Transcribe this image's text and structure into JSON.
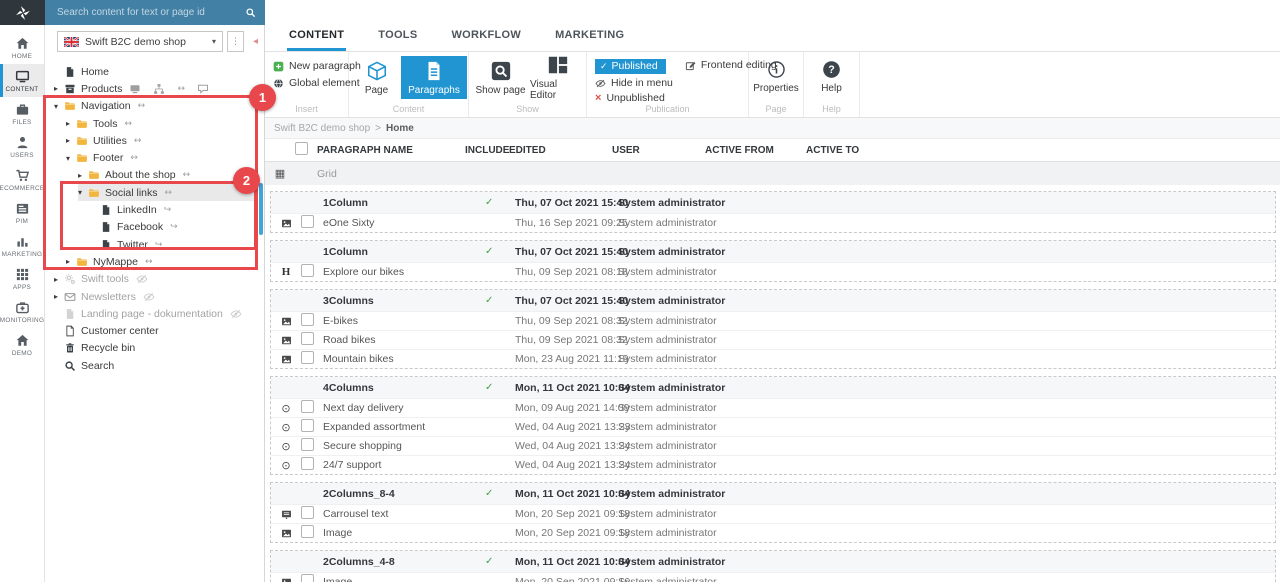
{
  "colors": {
    "accent": "#2195d1",
    "annotation_red": "#e8484c",
    "green": "#45a049",
    "folder": "#f2b53d",
    "searchbar_bg": "#4380a5"
  },
  "topbar": {
    "search_placeholder": "Search content for text or page id"
  },
  "sidebar": {
    "items": [
      {
        "label": "HOME",
        "icon": "home-icon",
        "active": false
      },
      {
        "label": "CONTENT",
        "icon": "monitor-icon",
        "active": true
      },
      {
        "label": "FILES",
        "icon": "briefcase-icon",
        "active": false
      },
      {
        "label": "USERS",
        "icon": "user-icon",
        "active": false
      },
      {
        "label": "ECOMMERCE",
        "icon": "cart-icon",
        "active": false
      },
      {
        "label": "PIM",
        "icon": "pim-icon",
        "active": false
      },
      {
        "label": "MARKETING",
        "icon": "barchart-icon",
        "active": false
      },
      {
        "label": "APPS",
        "icon": "apps-grid-icon",
        "active": false
      },
      {
        "label": "MONITORING",
        "icon": "medkit-icon",
        "active": false
      },
      {
        "label": "DEMO",
        "icon": "house-icon",
        "active": false
      }
    ]
  },
  "tree": {
    "selector": {
      "label": "Swift B2C demo shop",
      "flag": "uk-flag-icon",
      "caret": "▾",
      "kebab": "⋮",
      "collapse": "◂"
    },
    "items": [
      {
        "label": "Home",
        "icon": "page-dark-icon",
        "level": 0
      },
      {
        "label": "Products",
        "icon": "products-icon",
        "level": 0,
        "expander": "collapsed",
        "trailing": [
          "screen-icon",
          "sitemap-icon",
          "move-icon",
          "comment-icon"
        ]
      },
      {
        "label": "Navigation",
        "icon": "folder-icon",
        "level": 0,
        "expander": "expanded",
        "trailing": [
          "move-icon"
        ]
      },
      {
        "label": "Tools",
        "icon": "folder-icon",
        "level": 1,
        "expander": "collapsed",
        "trailing": [
          "move-icon"
        ]
      },
      {
        "label": "Utilities",
        "icon": "folder-icon",
        "level": 1,
        "expander": "collapsed",
        "trailing": [
          "move-icon"
        ]
      },
      {
        "label": "Footer",
        "icon": "folder-icon",
        "level": 1,
        "expander": "expanded",
        "trailing": [
          "move-icon"
        ]
      },
      {
        "label": "About the shop",
        "icon": "folder-icon",
        "level": 2,
        "expander": "collapsed",
        "trailing": [
          "move-icon"
        ]
      },
      {
        "label": "Social links",
        "icon": "folder-icon",
        "level": 2,
        "expander": "expanded",
        "trailing": [
          "move-icon"
        ],
        "selected": true
      },
      {
        "label": "LinkedIn",
        "icon": "page-dark-icon",
        "level": 3,
        "trailing": [
          "redirect-icon"
        ]
      },
      {
        "label": "Facebook",
        "icon": "page-dark-icon",
        "level": 3,
        "trailing": [
          "redirect-icon"
        ]
      },
      {
        "label": "Twitter",
        "icon": "page-dark-icon",
        "level": 3,
        "trailing": [
          "redirect-icon"
        ]
      },
      {
        "label": "NyMappe",
        "icon": "folder-icon",
        "level": 1,
        "expander": "collapsed",
        "trailing": [
          "move-icon"
        ]
      },
      {
        "label": "Swift tools",
        "icon": "gears-icon",
        "level": 0,
        "expander": "collapsed",
        "trailing": [
          "eye-slash-icon"
        ],
        "muted": true
      },
      {
        "label": "Newsletters",
        "icon": "envelope-icon",
        "level": 0,
        "expander": "collapsed",
        "trailing": [
          "eye-slash-icon"
        ],
        "muted": true
      },
      {
        "label": "Landing page - dokumentation",
        "icon": "page-muted-icon",
        "level": 0,
        "trailing": [
          "eye-slash-icon"
        ],
        "muted": true
      },
      {
        "label": "Customer center",
        "icon": "page-outline-icon",
        "level": 0
      },
      {
        "label": "Recycle bin",
        "icon": "trash-icon",
        "level": 0
      },
      {
        "label": "Search",
        "icon": "search-dark-icon",
        "level": 0
      }
    ]
  },
  "annotations": {
    "step1": "1",
    "step2": "2"
  },
  "tabs": {
    "items": [
      {
        "label": "CONTENT",
        "active": true
      },
      {
        "label": "TOOLS",
        "active": false
      },
      {
        "label": "WORKFLOW",
        "active": false
      },
      {
        "label": "MARKETING",
        "active": false
      }
    ]
  },
  "ribbon": {
    "insert": {
      "label": "Insert",
      "new_paragraph": "New paragraph",
      "global_element": "Global element"
    },
    "content": {
      "label": "Content",
      "page": "Page",
      "paragraphs": "Paragraphs"
    },
    "show": {
      "label": "Show",
      "show_page": "Show page",
      "visual_editor": "Visual Editor"
    },
    "publication": {
      "label": "Publication",
      "published": "Published",
      "frontend_editing": "Frontend editing",
      "hide_in_menu": "Hide in menu",
      "unpublished": "Unpublished"
    },
    "page": {
      "label": "Page",
      "properties": "Properties"
    },
    "help": {
      "label": "Help",
      "help": "Help"
    }
  },
  "breadcrumb": {
    "path": "Swift B2C demo shop",
    "separator": ">",
    "current": "Home"
  },
  "table": {
    "headers": [
      "PARAGRAPH NAME",
      "INCLUDE",
      "EDITED",
      "USER",
      "ACTIVE FROM",
      "ACTIVE TO"
    ],
    "grid_label": "Grid",
    "groups": [
      {
        "name": "1Column",
        "include": true,
        "edited": "Thu, 07 Oct 2021 15:40",
        "user": "System administrator",
        "rows": [
          {
            "icon": "image-icon",
            "name": "eOne Sixty",
            "edited": "Thu, 16 Sep 2021 09:25",
            "user": "System administrator"
          }
        ]
      },
      {
        "name": "1Column",
        "include": true,
        "edited": "Thu, 07 Oct 2021 15:40",
        "user": "System administrator",
        "rows": [
          {
            "icon": "heading-icon",
            "name": "Explore our bikes",
            "edited": "Thu, 09 Sep 2021 08:18",
            "user": "System administrator"
          }
        ]
      },
      {
        "name": "3Columns",
        "include": true,
        "edited": "Thu, 07 Oct 2021 15:40",
        "user": "System administrator",
        "rows": [
          {
            "icon": "image-icon",
            "name": "E-bikes",
            "edited": "Thu, 09 Sep 2021 08:32",
            "user": "System administrator"
          },
          {
            "icon": "image-icon",
            "name": "Road bikes",
            "edited": "Thu, 09 Sep 2021 08:32",
            "user": "System administrator"
          },
          {
            "icon": "image-icon",
            "name": "Mountain bikes",
            "edited": "Mon, 23 Aug 2021 11:19",
            "user": "System administrator"
          }
        ]
      },
      {
        "name": "4Columns",
        "include": true,
        "edited": "Mon, 11 Oct 2021 10:04",
        "user": "System administrator",
        "rows": [
          {
            "icon": "target-icon",
            "name": "Next day delivery",
            "edited": "Mon, 09 Aug 2021 14:09",
            "user": "System administrator"
          },
          {
            "icon": "target-icon",
            "name": "Expanded assortment",
            "edited": "Wed, 04 Aug 2021 13:23",
            "user": "System administrator"
          },
          {
            "icon": "target-icon",
            "name": "Secure shopping",
            "edited": "Wed, 04 Aug 2021 13:24",
            "user": "System administrator"
          },
          {
            "icon": "target-icon",
            "name": "24/7 support",
            "edited": "Wed, 04 Aug 2021 13:24",
            "user": "System administrator"
          }
        ]
      },
      {
        "name": "2Columns_8-4",
        "include": true,
        "edited": "Mon, 11 Oct 2021 10:04",
        "user": "System administrator",
        "rows": [
          {
            "icon": "carousel-icon",
            "name": "Carrousel text",
            "edited": "Mon, 20 Sep 2021 09:18",
            "user": "System administrator"
          },
          {
            "icon": "image-icon",
            "name": "Image",
            "edited": "Mon, 20 Sep 2021 09:18",
            "user": "System administrator"
          }
        ]
      },
      {
        "name": "2Columns_4-8",
        "include": true,
        "edited": "Mon, 11 Oct 2021 10:04",
        "user": "System administrator",
        "rows": [
          {
            "icon": "image-icon",
            "name": "Image",
            "edited": "Mon, 20 Sep 2021 09:16",
            "user": "System administrator"
          }
        ]
      }
    ]
  }
}
